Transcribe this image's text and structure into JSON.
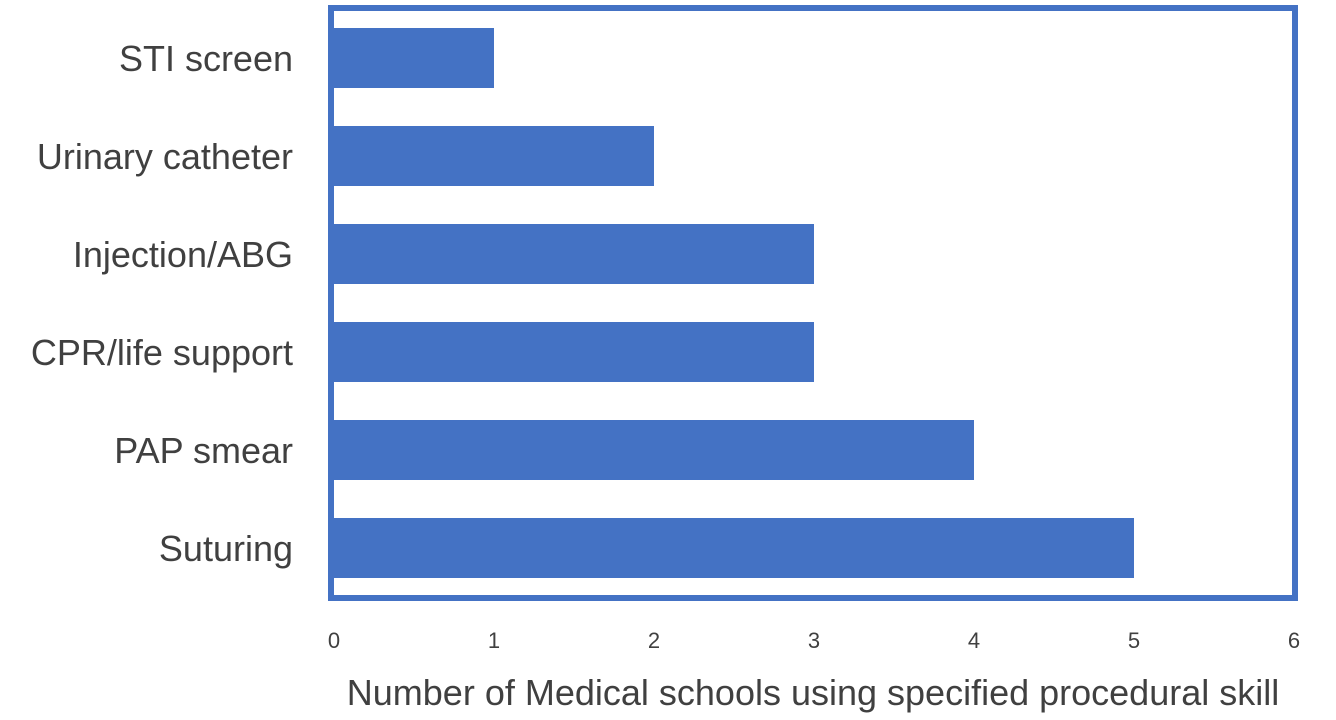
{
  "chart_data": {
    "type": "bar",
    "orientation": "horizontal",
    "title": "",
    "xlabel": "Number of Medical schools using specified procedural skill",
    "ylabel": "",
    "categories": [
      "STI screen",
      "Urinary catheter",
      "Injection/ABG",
      "CPR/life support",
      "PAP smear",
      "Suturing"
    ],
    "values": [
      1,
      2,
      3,
      3,
      4,
      5
    ],
    "xlim": [
      0,
      6
    ],
    "xticks": [
      "0",
      "1",
      "2",
      "3",
      "4",
      "5",
      "6"
    ],
    "grid": false,
    "legend": "none",
    "colors": {
      "bar": "#4472C4",
      "plot_border": "#4472C4",
      "text": "#404040"
    }
  }
}
